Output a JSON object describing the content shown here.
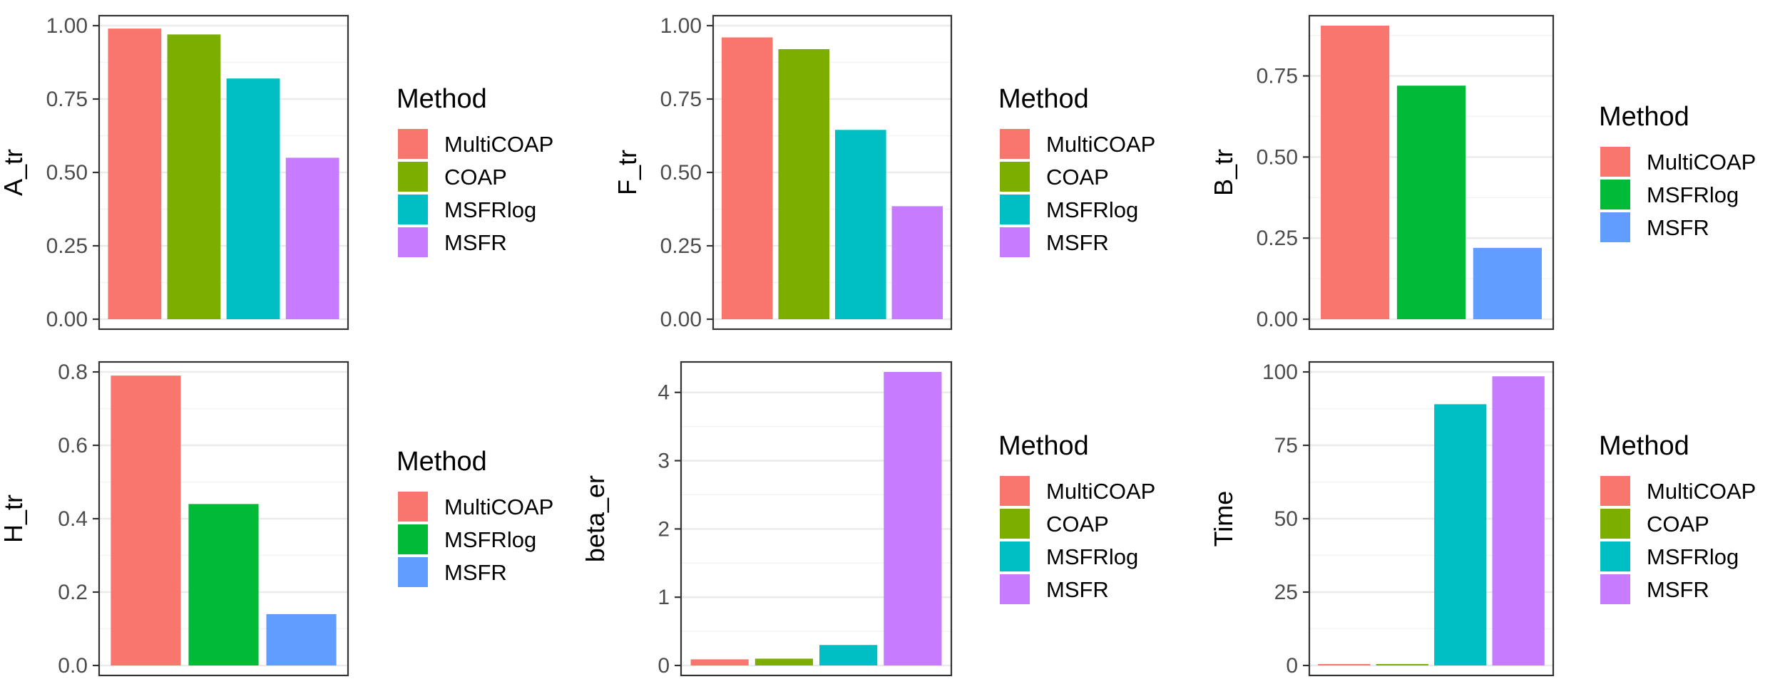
{
  "chart_data": [
    {
      "type": "bar",
      "ylabel": "A_tr",
      "categories": [
        "MultiCOAP",
        "COAP",
        "MSFRlog",
        "MSFR"
      ],
      "values": [
        0.99,
        0.97,
        0.82,
        0.55
      ],
      "colors": [
        "#F8766D",
        "#7CAE00",
        "#00BFC4",
        "#C77CFF"
      ],
      "ylim": [
        0,
        1.0
      ],
      "yticks": [
        0,
        0.25,
        0.5,
        0.75,
        1.0
      ],
      "ytick_labels": [
        "0.00",
        "0.25",
        "0.50",
        "0.75",
        "1.00"
      ],
      "legend_title": "Method",
      "legend_position": "right"
    },
    {
      "type": "bar",
      "ylabel": "F_tr",
      "categories": [
        "MultiCOAP",
        "COAP",
        "MSFRlog",
        "MSFR"
      ],
      "values": [
        0.96,
        0.92,
        0.645,
        0.385
      ],
      "colors": [
        "#F8766D",
        "#7CAE00",
        "#00BFC4",
        "#C77CFF"
      ],
      "ylim": [
        0,
        1.0
      ],
      "yticks": [
        0,
        0.25,
        0.5,
        0.75,
        1.0
      ],
      "ytick_labels": [
        "0.00",
        "0.25",
        "0.50",
        "0.75",
        "1.00"
      ],
      "legend_title": "Method",
      "legend_position": "right"
    },
    {
      "type": "bar",
      "ylabel": "B_tr",
      "categories": [
        "MultiCOAP",
        "MSFRlog",
        "MSFR"
      ],
      "values": [
        0.905,
        0.72,
        0.22
      ],
      "colors": [
        "#F8766D",
        "#00BA38",
        "#619CFF"
      ],
      "ylim": [
        0,
        0.905
      ],
      "yticks": [
        0,
        0.25,
        0.5,
        0.75
      ],
      "ytick_labels": [
        "0.00",
        "0.25",
        "0.50",
        "0.75"
      ],
      "legend_title": "Method",
      "legend_position": "right"
    },
    {
      "type": "bar",
      "ylabel": "H_tr",
      "categories": [
        "MultiCOAP",
        "MSFRlog",
        "MSFR"
      ],
      "values": [
        0.79,
        0.44,
        0.14
      ],
      "colors": [
        "#F8766D",
        "#00BA38",
        "#619CFF"
      ],
      "ylim": [
        0,
        0.8
      ],
      "yticks": [
        0,
        0.2,
        0.4,
        0.6,
        0.8
      ],
      "ytick_labels": [
        "0.0",
        "0.2",
        "0.4",
        "0.6",
        "0.8"
      ],
      "legend_title": "Method",
      "legend_position": "right"
    },
    {
      "type": "bar",
      "ylabel": "beta_er",
      "categories": [
        "MultiCOAP",
        "COAP",
        "MSFRlog",
        "MSFR"
      ],
      "values": [
        0.09,
        0.1,
        0.3,
        4.3
      ],
      "colors": [
        "#F8766D",
        "#7CAE00",
        "#00BFC4",
        "#C77CFF"
      ],
      "ylim": [
        0,
        4.3
      ],
      "yticks": [
        0,
        1,
        2,
        3,
        4
      ],
      "ytick_labels": [
        "0",
        "1",
        "2",
        "3",
        "4"
      ],
      "legend_title": "Method",
      "legend_position": "right"
    },
    {
      "type": "bar",
      "ylabel": "Time",
      "categories": [
        "MultiCOAP",
        "COAP",
        "MSFRlog",
        "MSFR"
      ],
      "values": [
        0.5,
        0.5,
        89,
        98.5
      ],
      "colors": [
        "#F8766D",
        "#7CAE00",
        "#00BFC4",
        "#C77CFF"
      ],
      "ylim": [
        0,
        100
      ],
      "yticks": [
        0,
        25,
        50,
        75,
        100
      ],
      "ytick_labels": [
        "0",
        "25",
        "50",
        "75",
        "100"
      ],
      "legend_title": "Method",
      "legend_position": "right"
    }
  ]
}
